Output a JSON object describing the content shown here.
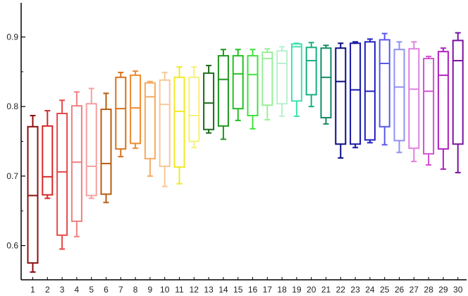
{
  "chart_data": {
    "type": "box",
    "title": "",
    "xlabel": "",
    "ylabel": "",
    "ylim": [
      0.55,
      0.92
    ],
    "yticks": [
      "0.6",
      "0.7",
      "0.8",
      "0.9"
    ],
    "grid": false,
    "categories": [
      "1",
      "2",
      "3",
      "4",
      "5",
      "6",
      "7",
      "8",
      "9",
      "10",
      "11",
      "12",
      "13",
      "14",
      "15",
      "16",
      "17",
      "18",
      "19",
      "20",
      "21",
      "22",
      "23",
      "24",
      "25",
      "26",
      "27",
      "28",
      "29",
      "30"
    ],
    "boxes": [
      {
        "label": "1",
        "min": 0.562,
        "q1": 0.575,
        "median": 0.672,
        "q3": 0.771,
        "max": 0.787,
        "color": "#8b0f0f"
      },
      {
        "label": "2",
        "min": 0.668,
        "q1": 0.673,
        "median": 0.699,
        "q3": 0.772,
        "max": 0.794,
        "color": "#d62828"
      },
      {
        "label": "3",
        "min": 0.595,
        "q1": 0.615,
        "median": 0.706,
        "q3": 0.79,
        "max": 0.809,
        "color": "#e84848"
      },
      {
        "label": "4",
        "min": 0.613,
        "q1": 0.635,
        "median": 0.72,
        "q3": 0.801,
        "max": 0.821,
        "color": "#f08080"
      },
      {
        "label": "5",
        "min": 0.668,
        "q1": 0.672,
        "median": 0.714,
        "q3": 0.804,
        "max": 0.826,
        "color": "#f4a0a0"
      },
      {
        "label": "6",
        "min": 0.662,
        "q1": 0.674,
        "median": 0.718,
        "q3": 0.796,
        "max": 0.819,
        "color": "#b85c0e"
      },
      {
        "label": "7",
        "min": 0.728,
        "q1": 0.739,
        "median": 0.797,
        "q3": 0.842,
        "max": 0.849,
        "color": "#d4731c"
      },
      {
        "label": "8",
        "min": 0.74,
        "q1": 0.747,
        "median": 0.798,
        "q3": 0.845,
        "max": 0.851,
        "color": "#ec8a30"
      },
      {
        "label": "9",
        "min": 0.7,
        "q1": 0.725,
        "median": 0.814,
        "q3": 0.834,
        "max": 0.836,
        "color": "#f5aa60"
      },
      {
        "label": "10",
        "min": 0.685,
        "q1": 0.714,
        "median": 0.803,
        "q3": 0.838,
        "max": 0.849,
        "color": "#f8c896"
      },
      {
        "label": "11",
        "min": 0.689,
        "q1": 0.713,
        "median": 0.793,
        "q3": 0.842,
        "max": 0.857,
        "color": "#f2e82a"
      },
      {
        "label": "12",
        "min": 0.741,
        "q1": 0.75,
        "median": 0.787,
        "q3": 0.842,
        "max": 0.857,
        "color": "#f6f17a"
      },
      {
        "label": "13",
        "min": 0.762,
        "q1": 0.767,
        "median": 0.805,
        "q3": 0.848,
        "max": 0.859,
        "color": "#1a6b1a"
      },
      {
        "label": "14",
        "min": 0.753,
        "q1": 0.772,
        "median": 0.839,
        "q3": 0.873,
        "max": 0.882,
        "color": "#1f961f"
      },
      {
        "label": "15",
        "min": 0.78,
        "q1": 0.797,
        "median": 0.847,
        "q3": 0.873,
        "max": 0.882,
        "color": "#22c022"
      },
      {
        "label": "16",
        "min": 0.768,
        "q1": 0.787,
        "median": 0.846,
        "q3": 0.873,
        "max": 0.882,
        "color": "#40e040"
      },
      {
        "label": "17",
        "min": 0.781,
        "q1": 0.802,
        "median": 0.869,
        "q3": 0.878,
        "max": 0.883,
        "color": "#98f098"
      },
      {
        "label": "18",
        "min": 0.786,
        "q1": 0.804,
        "median": 0.862,
        "q3": 0.88,
        "max": 0.886,
        "color": "#b8f0d0"
      },
      {
        "label": "19",
        "min": 0.786,
        "q1": 0.808,
        "median": 0.886,
        "q3": 0.89,
        "max": 0.891,
        "color": "#40e0b0"
      },
      {
        "label": "20",
        "min": 0.8,
        "q1": 0.817,
        "median": 0.866,
        "q3": 0.885,
        "max": 0.892,
        "color": "#18b080"
      },
      {
        "label": "21",
        "min": 0.775,
        "q1": 0.784,
        "median": 0.842,
        "q3": 0.884,
        "max": 0.888,
        "color": "#128a64"
      },
      {
        "label": "22",
        "min": 0.726,
        "q1": 0.746,
        "median": 0.836,
        "q3": 0.884,
        "max": 0.891,
        "color": "#0a0a80"
      },
      {
        "label": "23",
        "min": 0.741,
        "q1": 0.746,
        "median": 0.824,
        "q3": 0.891,
        "max": 0.893,
        "color": "#1414a8"
      },
      {
        "label": "24",
        "min": 0.748,
        "q1": 0.752,
        "median": 0.822,
        "q3": 0.893,
        "max": 0.897,
        "color": "#2020c0"
      },
      {
        "label": "25",
        "min": 0.745,
        "q1": 0.771,
        "median": 0.862,
        "q3": 0.896,
        "max": 0.905,
        "color": "#5858ee"
      },
      {
        "label": "26",
        "min": 0.734,
        "q1": 0.751,
        "median": 0.828,
        "q3": 0.882,
        "max": 0.893,
        "color": "#9090f4"
      },
      {
        "label": "27",
        "min": 0.721,
        "q1": 0.74,
        "median": 0.825,
        "q3": 0.883,
        "max": 0.893,
        "color": "#e080e0"
      },
      {
        "label": "28",
        "min": 0.716,
        "q1": 0.732,
        "median": 0.822,
        "q3": 0.869,
        "max": 0.872,
        "color": "#d050d0"
      },
      {
        "label": "29",
        "min": 0.71,
        "q1": 0.739,
        "median": 0.845,
        "q3": 0.879,
        "max": 0.884,
        "color": "#b020c0"
      },
      {
        "label": "30",
        "min": 0.705,
        "q1": 0.746,
        "median": 0.866,
        "q3": 0.895,
        "max": 0.906,
        "color": "#7a10a0"
      }
    ]
  }
}
